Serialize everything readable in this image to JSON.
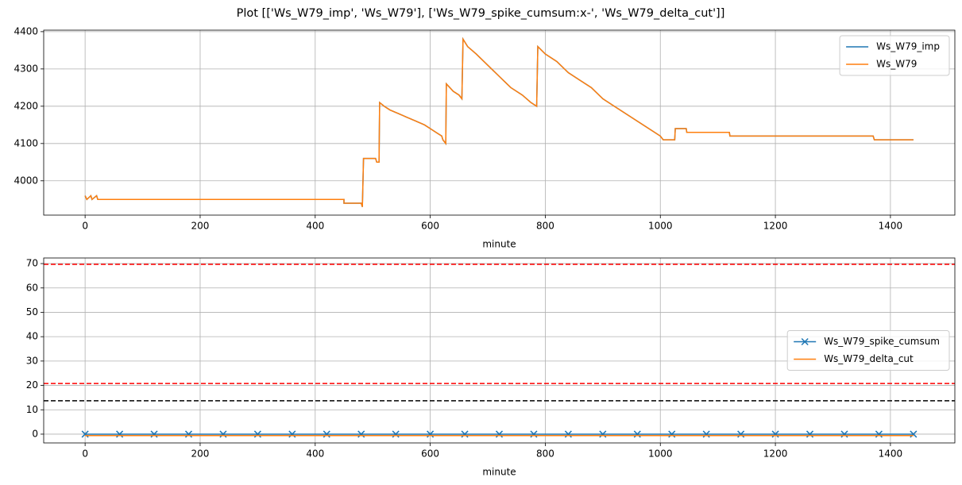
{
  "title": "Plot [['Ws_W79_imp', 'Ws_W79'], ['Ws_W79_spike_cumsum:x-', 'Ws_W79_delta_cut']]",
  "chart_data": [
    {
      "type": "line",
      "xlabel": "minute",
      "grid": true,
      "legend": "upper right",
      "xlim": [
        -72,
        1512
      ],
      "xticks": [
        0,
        200,
        400,
        600,
        800,
        1000,
        1200,
        1400
      ],
      "ylim": [
        3908,
        4404
      ],
      "yticks": [
        4000,
        4100,
        4200,
        4300,
        4400
      ],
      "x": [
        0,
        3,
        10,
        12,
        20,
        22,
        450,
        450,
        480,
        482,
        484,
        505,
        507,
        511,
        512,
        520,
        530,
        545,
        560,
        575,
        590,
        600,
        610,
        620,
        622,
        627,
        628,
        640,
        650,
        655,
        657,
        665,
        680,
        700,
        720,
        740,
        760,
        775,
        785,
        787,
        800,
        820,
        840,
        860,
        880,
        900,
        920,
        940,
        960,
        980,
        1000,
        1005,
        1025,
        1026,
        1045,
        1046,
        1120,
        1121,
        1370,
        1372,
        1440
      ],
      "series": [
        {
          "name": "Ws_W79_imp",
          "color": "#1f77b4",
          "values": [
            3960,
            3950,
            3960,
            3950,
            3960,
            3950,
            3950,
            3940,
            3940,
            3930,
            4060,
            4060,
            4050,
            4050,
            4210,
            4200,
            4190,
            4180,
            4170,
            4160,
            4150,
            4140,
            4130,
            4120,
            4110,
            4100,
            4260,
            4240,
            4230,
            4220,
            4380,
            4360,
            4340,
            4310,
            4280,
            4250,
            4230,
            4210,
            4200,
            4360,
            4340,
            4320,
            4290,
            4270,
            4250,
            4220,
            4200,
            4180,
            4160,
            4140,
            4120,
            4110,
            4110,
            4140,
            4140,
            4130,
            4130,
            4120,
            4120,
            4110,
            4110
          ]
        },
        {
          "name": "Ws_W79",
          "color": "#ff7f0e",
          "values": [
            3960,
            3950,
            3960,
            3950,
            3960,
            3950,
            3950,
            3940,
            3940,
            3930,
            4060,
            4060,
            4050,
            4050,
            4210,
            4200,
            4190,
            4180,
            4170,
            4160,
            4150,
            4140,
            4130,
            4120,
            4110,
            4100,
            4260,
            4240,
            4230,
            4220,
            4380,
            4360,
            4340,
            4310,
            4280,
            4250,
            4230,
            4210,
            4200,
            4360,
            4340,
            4320,
            4290,
            4270,
            4250,
            4220,
            4200,
            4180,
            4160,
            4140,
            4120,
            4110,
            4110,
            4140,
            4140,
            4130,
            4130,
            4120,
            4120,
            4110,
            4110
          ]
        }
      ]
    },
    {
      "type": "line",
      "xlabel": "minute",
      "grid": true,
      "legend": "center right",
      "xlim": [
        -72,
        1512
      ],
      "xticks": [
        0,
        200,
        400,
        600,
        800,
        1000,
        1200,
        1400
      ],
      "ylim": [
        -3.6,
        72.3
      ],
      "yticks": [
        0,
        10,
        20,
        30,
        40,
        50,
        60,
        70
      ],
      "x": [
        0,
        60,
        120,
        180,
        240,
        300,
        360,
        420,
        480,
        540,
        600,
        660,
        720,
        780,
        840,
        900,
        960,
        1020,
        1080,
        1140,
        1200,
        1260,
        1320,
        1380,
        1440
      ],
      "series": [
        {
          "name": "Ws_W79_spike_cumsum",
          "color": "#1f77b4",
          "marker": "x",
          "values": [
            0,
            0,
            0,
            0,
            0,
            0,
            0,
            0,
            0,
            0,
            0,
            0,
            0,
            0,
            0,
            0,
            0,
            0,
            0,
            0,
            0,
            0,
            0,
            0,
            0
          ]
        },
        {
          "name": "Ws_W79_delta_cut",
          "color": "#ff7f0e",
          "values": [
            -0.6,
            -0.6,
            -0.6,
            -0.6,
            -0.6,
            -0.6,
            -0.6,
            -0.6,
            -0.6,
            -0.6,
            -0.6,
            -0.6,
            -0.6,
            -0.6,
            -0.6,
            -0.6,
            -0.6,
            -0.6,
            -0.6,
            -0.6,
            -0.6,
            -0.6,
            -0.6,
            -0.6,
            -0.6
          ]
        }
      ],
      "hlines": [
        {
          "value": 69.7,
          "color": "#ff0000",
          "linestyle": "dashed"
        },
        {
          "value": 20.8,
          "color": "#ff0000",
          "linestyle": "dashed"
        },
        {
          "value": 13.7,
          "color": "#000000",
          "linestyle": "dashed"
        }
      ]
    }
  ]
}
